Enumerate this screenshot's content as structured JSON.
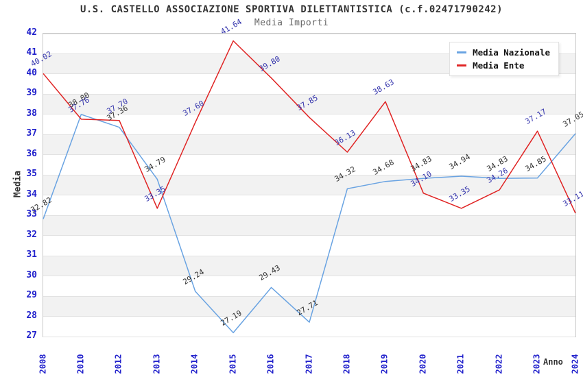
{
  "title": "U.S. CASTELLO ASSOCIAZIONE SPORTIVA DILETTANTISTICA (c.f.02471790242)",
  "subtitle": "Media Importi",
  "colors": {
    "axis_tick_label": "#2222cc",
    "grid_band_gray": "#f2f2f2",
    "gridline": "#e2e2e2",
    "plot_border": "#c9c9c9",
    "media_nazionale_line": "#69a3e2",
    "media_ente_line": "#e02424",
    "media_nazionale_value_label": "#333333",
    "media_ente_value_label": "#3535ad"
  },
  "chart_data": {
    "type": "line",
    "title": "U.S. CASTELLO ASSOCIAZIONE SPORTIVA DILETTANTISTICA (c.f.02471790242)",
    "subtitle": "Media Importi",
    "xlabel": "Anno",
    "ylabel": "Media",
    "ylim": [
      27,
      42
    ],
    "y_tick_step": 1,
    "grid": "horizontal-bands-alternating",
    "legend_position": "top-right",
    "categories": [
      "2008",
      "2010",
      "2012",
      "2013",
      "2014",
      "2015",
      "2016",
      "2017",
      "2018",
      "2019",
      "2020",
      "2021",
      "2022",
      "2023",
      "2024"
    ],
    "series": [
      {
        "name": "Media Nazionale",
        "color": "#69a3e2",
        "label_color": "#333333",
        "values": [
          32.82,
          38.0,
          37.36,
          34.79,
          29.24,
          27.19,
          29.43,
          27.71,
          34.32,
          34.68,
          34.83,
          34.94,
          34.83,
          34.85,
          37.05
        ]
      },
      {
        "name": "Media Ente",
        "color": "#e02424",
        "label_color": "#3535ad",
        "values": [
          40.02,
          37.76,
          37.7,
          33.35,
          37.6,
          41.64,
          39.8,
          37.85,
          36.13,
          38.63,
          34.1,
          33.35,
          34.26,
          37.17,
          33.11
        ]
      }
    ]
  }
}
